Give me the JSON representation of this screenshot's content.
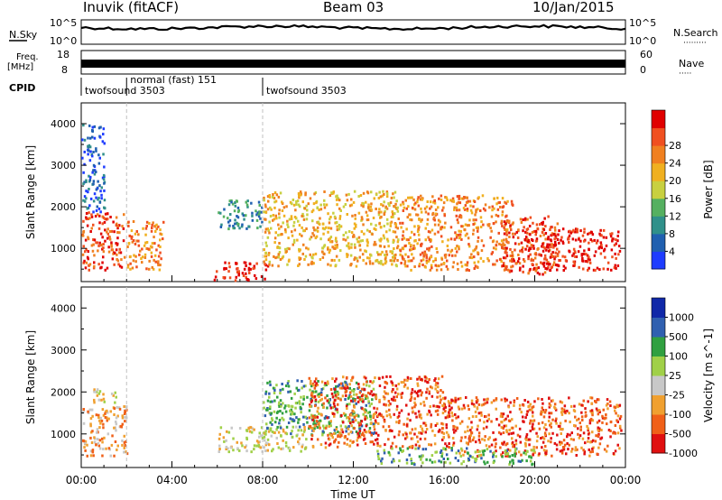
{
  "header": {
    "station": "Inuvik (fitACF)",
    "beam": "Beam 03",
    "date": "10/Jan/2015"
  },
  "sky_panel": {
    "left_label": "N.Sky",
    "right_label": "N.Search",
    "right_label_dots": "·········",
    "left_ticks": [
      "10^5",
      "10^0"
    ],
    "right_ticks": [
      "10^5",
      "10^0"
    ]
  },
  "freq_panel": {
    "left_label_1": "Freq.",
    "left_label_2": "[MHz]",
    "right_label": "Nave",
    "right_label_dots": "·····",
    "left_ticks": [
      "18",
      "8"
    ],
    "right_ticks": [
      "60",
      "0"
    ]
  },
  "cpid": {
    "label": "CPID",
    "segments": [
      {
        "text": "twofsound 3503",
        "start_hour": 0
      },
      {
        "text": "normal (fast) 151",
        "start_hour": 2
      },
      {
        "text": "twofsound 3503",
        "start_hour": 8
      }
    ]
  },
  "time_axis": {
    "title": "Time UT",
    "ticks": [
      "00:00",
      "04:00",
      "08:00",
      "12:00",
      "16:00",
      "20:00",
      "00:00"
    ]
  },
  "colors": {
    "power": [
      "#1e3cff",
      "#2060b0",
      "#30908a",
      "#55b060",
      "#c8d040",
      "#f0b020",
      "#f08020",
      "#f05020",
      "#e00000"
    ],
    "velocity": [
      "#e01010",
      "#f06018",
      "#f0a030",
      "#c8c8c8",
      "#a0d048",
      "#30a040",
      "#3060b0",
      "#1028a8"
    ]
  },
  "chart_data": [
    {
      "type": "heatmap",
      "title": "",
      "xlabel": "Time UT",
      "ylabel": "Slant Range [km]",
      "colorbar_label": "Power [dB]",
      "colorbar_ticks": [
        "4",
        "8",
        "12",
        "16",
        "20",
        "24",
        "28"
      ],
      "xlim": [
        0,
        24
      ],
      "ylim": [
        200,
        4500
      ],
      "y_ticks": [
        "1000",
        "2000",
        "3000",
        "4000"
      ],
      "y_tick_values": [
        1000,
        2000,
        3000,
        4000
      ],
      "regions": [
        {
          "t": [
            0.0,
            1.9
          ],
          "r": [
            500,
            1900
          ],
          "level": 7
        },
        {
          "t": [
            2.0,
            3.6
          ],
          "r": [
            500,
            1700
          ],
          "level": 6
        },
        {
          "t": [
            5.8,
            8.2
          ],
          "r": [
            250,
            700
          ],
          "level": 8
        },
        {
          "t": [
            6.0,
            8.0
          ],
          "r": [
            1500,
            2200
          ],
          "level": 2
        },
        {
          "t": [
            8.0,
            14.0
          ],
          "r": [
            600,
            2400
          ],
          "level": 5
        },
        {
          "t": [
            14.0,
            19.0
          ],
          "r": [
            500,
            2300
          ],
          "level": 6
        },
        {
          "t": [
            18.5,
            21.0
          ],
          "r": [
            400,
            1800
          ],
          "level": 7
        },
        {
          "t": [
            19.5,
            23.8
          ],
          "r": [
            500,
            1500
          ],
          "level": 8
        },
        {
          "t": [
            0.0,
            1.0
          ],
          "r": [
            1900,
            4000
          ],
          "level": 1
        }
      ]
    },
    {
      "type": "heatmap",
      "title": "",
      "xlabel": "Time UT",
      "ylabel": "Slant Range [km]",
      "colorbar_label": "Velocity [m s^-1]",
      "colorbar_ticks": [
        "1000",
        "500",
        "100",
        "25",
        "-25",
        "-100",
        "-500",
        "-1000"
      ],
      "xlim": [
        0,
        24
      ],
      "ylim": [
        200,
        4500
      ],
      "y_ticks": [
        "1000",
        "2000",
        "3000",
        "4000"
      ],
      "y_tick_values": [
        1000,
        2000,
        3000,
        4000
      ],
      "regions": [
        {
          "t": [
            0.0,
            2.0
          ],
          "r": [
            500,
            1700
          ],
          "level": 2
        },
        {
          "t": [
            0.5,
            1.5
          ],
          "r": [
            1700,
            2100
          ],
          "level": 3
        },
        {
          "t": [
            6.0,
            10.0
          ],
          "r": [
            600,
            1200
          ],
          "level": 3
        },
        {
          "t": [
            8.0,
            13.0
          ],
          "r": [
            1000,
            2300
          ],
          "level": 5
        },
        {
          "t": [
            10.0,
            16.0
          ],
          "r": [
            700,
            2400
          ],
          "level": 1
        },
        {
          "t": [
            16.0,
            23.8
          ],
          "r": [
            500,
            1900
          ],
          "level": 1
        },
        {
          "t": [
            13.0,
            20.0
          ],
          "r": [
            300,
            700
          ],
          "level": 5
        }
      ]
    }
  ]
}
